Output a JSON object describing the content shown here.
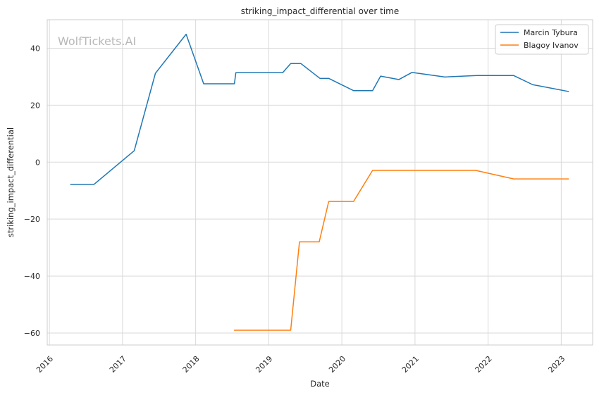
{
  "chart_data": {
    "type": "line",
    "title": "striking_impact_differential over time",
    "xlabel": "Date",
    "ylabel": "striking_impact_differential",
    "watermark": "WolfTickets.AI",
    "xlim": [
      2015.97,
      2023.43
    ],
    "ylim": [
      -64.2,
      50.0
    ],
    "x_ticks": [
      2016,
      2017,
      2018,
      2019,
      2020,
      2021,
      2022,
      2023
    ],
    "y_ticks": [
      -60,
      -40,
      -20,
      0,
      20,
      40
    ],
    "y_tick_labels": [
      "−60",
      "−40",
      "−20",
      "0",
      "20",
      "40"
    ],
    "grid": true,
    "legend_position": "top-right",
    "series": [
      {
        "name": "Marcin Tybura",
        "color": "#1f77b4",
        "points": [
          [
            2016.29,
            -7.8
          ],
          [
            2016.61,
            -7.8
          ],
          [
            2017.16,
            4.0
          ],
          [
            2017.45,
            31.2
          ],
          [
            2017.87,
            44.9
          ],
          [
            2018.11,
            27.5
          ],
          [
            2018.53,
            27.5
          ],
          [
            2018.55,
            31.4
          ],
          [
            2019.19,
            31.4
          ],
          [
            2019.3,
            34.6
          ],
          [
            2019.44,
            34.6
          ],
          [
            2019.7,
            29.4
          ],
          [
            2019.82,
            29.4
          ],
          [
            2020.16,
            25.1
          ],
          [
            2020.42,
            25.1
          ],
          [
            2020.53,
            30.2
          ],
          [
            2020.78,
            29.0
          ],
          [
            2020.96,
            31.5
          ],
          [
            2021.41,
            29.9
          ],
          [
            2021.85,
            30.4
          ],
          [
            2022.35,
            30.4
          ],
          [
            2022.61,
            27.2
          ],
          [
            2023.1,
            24.8
          ]
        ]
      },
      {
        "name": "Blagoy Ivanov",
        "color": "#ff7f0e",
        "points": [
          [
            2018.53,
            -59.0
          ],
          [
            2019.3,
            -59.0
          ],
          [
            2019.42,
            -28.0
          ],
          [
            2019.69,
            -28.0
          ],
          [
            2019.82,
            -13.8
          ],
          [
            2020.16,
            -13.8
          ],
          [
            2020.42,
            -2.9
          ],
          [
            2021.83,
            -2.9
          ],
          [
            2022.35,
            -5.9
          ],
          [
            2023.1,
            -5.9
          ]
        ]
      }
    ]
  }
}
